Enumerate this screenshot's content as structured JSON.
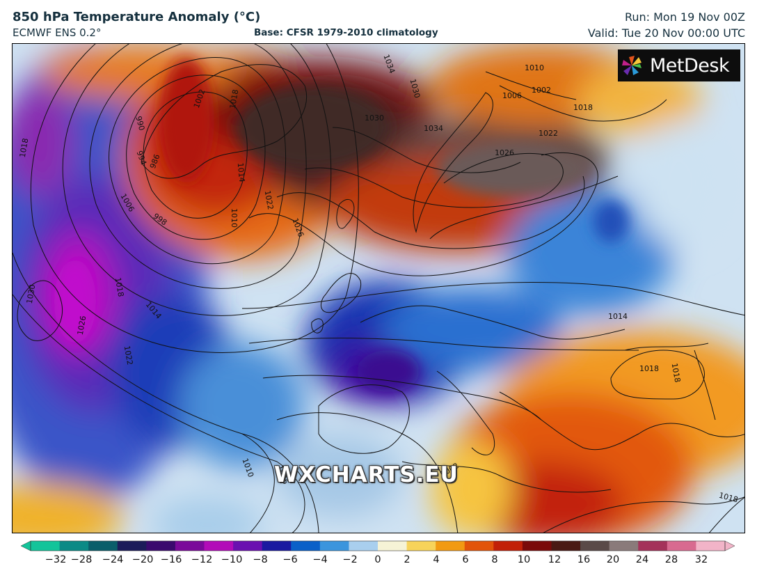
{
  "header": {
    "title": "850 hPa Temperature Anomaly (°C)",
    "model": "ECMWF ENS 0.2°",
    "base": "Base: CFSR 1979-2010 climatology",
    "run": "Run: Mon 19 Nov 00Z",
    "valid": "Valid: Tue 20 Nov 00:00 UTC"
  },
  "logo": {
    "text": "MetDesk",
    "icon": "metdesk-pinwheel-icon"
  },
  "watermark": "WXCHARTS.EU",
  "colorbar": {
    "ticks": [
      "−32",
      "−28",
      "−24",
      "−20",
      "−16",
      "−12",
      "−10",
      "−8",
      "−6",
      "−4",
      "−2",
      "0",
      "2",
      "4",
      "6",
      "8",
      "10",
      "12",
      "16",
      "20",
      "24",
      "28",
      "32"
    ],
    "colors": [
      "#13c49a",
      "#0b8a86",
      "#0a5e6a",
      "#1c1c5a",
      "#3a0a6e",
      "#7a0a9a",
      "#b20cb8",
      "#6a10b0",
      "#1a1aa0",
      "#0a60c8",
      "#3b95dd",
      "#a9cfee",
      "#f6f3d6",
      "#f7d35a",
      "#f29a12",
      "#e2540a",
      "#c22008",
      "#7a0a0a",
      "#4a1a14",
      "#5a4a48",
      "#8a7a7a",
      "#a4325a",
      "#d86a90",
      "#f2b4c8"
    ]
  },
  "map": {
    "isobar_labels": [
      "990",
      "994",
      "998",
      "1002",
      "1006",
      "1010",
      "1014",
      "1018",
      "1022",
      "1026",
      "1030",
      "1034"
    ],
    "labels": [
      {
        "text": "1018"
      },
      {
        "text": "990"
      },
      {
        "text": "994"
      },
      {
        "text": "986"
      },
      {
        "text": "1002"
      },
      {
        "text": "1018"
      },
      {
        "text": "998"
      },
      {
        "text": "1006"
      },
      {
        "text": "1014"
      },
      {
        "text": "1010"
      },
      {
        "text": "1022"
      },
      {
        "text": "1026"
      },
      {
        "text": "1030"
      },
      {
        "text": "1034"
      },
      {
        "text": "1030"
      },
      {
        "text": "1034"
      },
      {
        "text": "1026"
      },
      {
        "text": "1022"
      },
      {
        "text": "1018"
      },
      {
        "text": "1010"
      },
      {
        "text": "1002"
      },
      {
        "text": "1006"
      },
      {
        "text": "1030"
      },
      {
        "text": "1026"
      },
      {
        "text": "1018"
      },
      {
        "text": "1022"
      },
      {
        "text": "1014"
      },
      {
        "text": "1010"
      },
      {
        "text": "1006"
      },
      {
        "text": "1002"
      },
      {
        "text": "1018"
      },
      {
        "text": "1018"
      },
      {
        "text": "1014"
      },
      {
        "text": "1018"
      }
    ]
  }
}
